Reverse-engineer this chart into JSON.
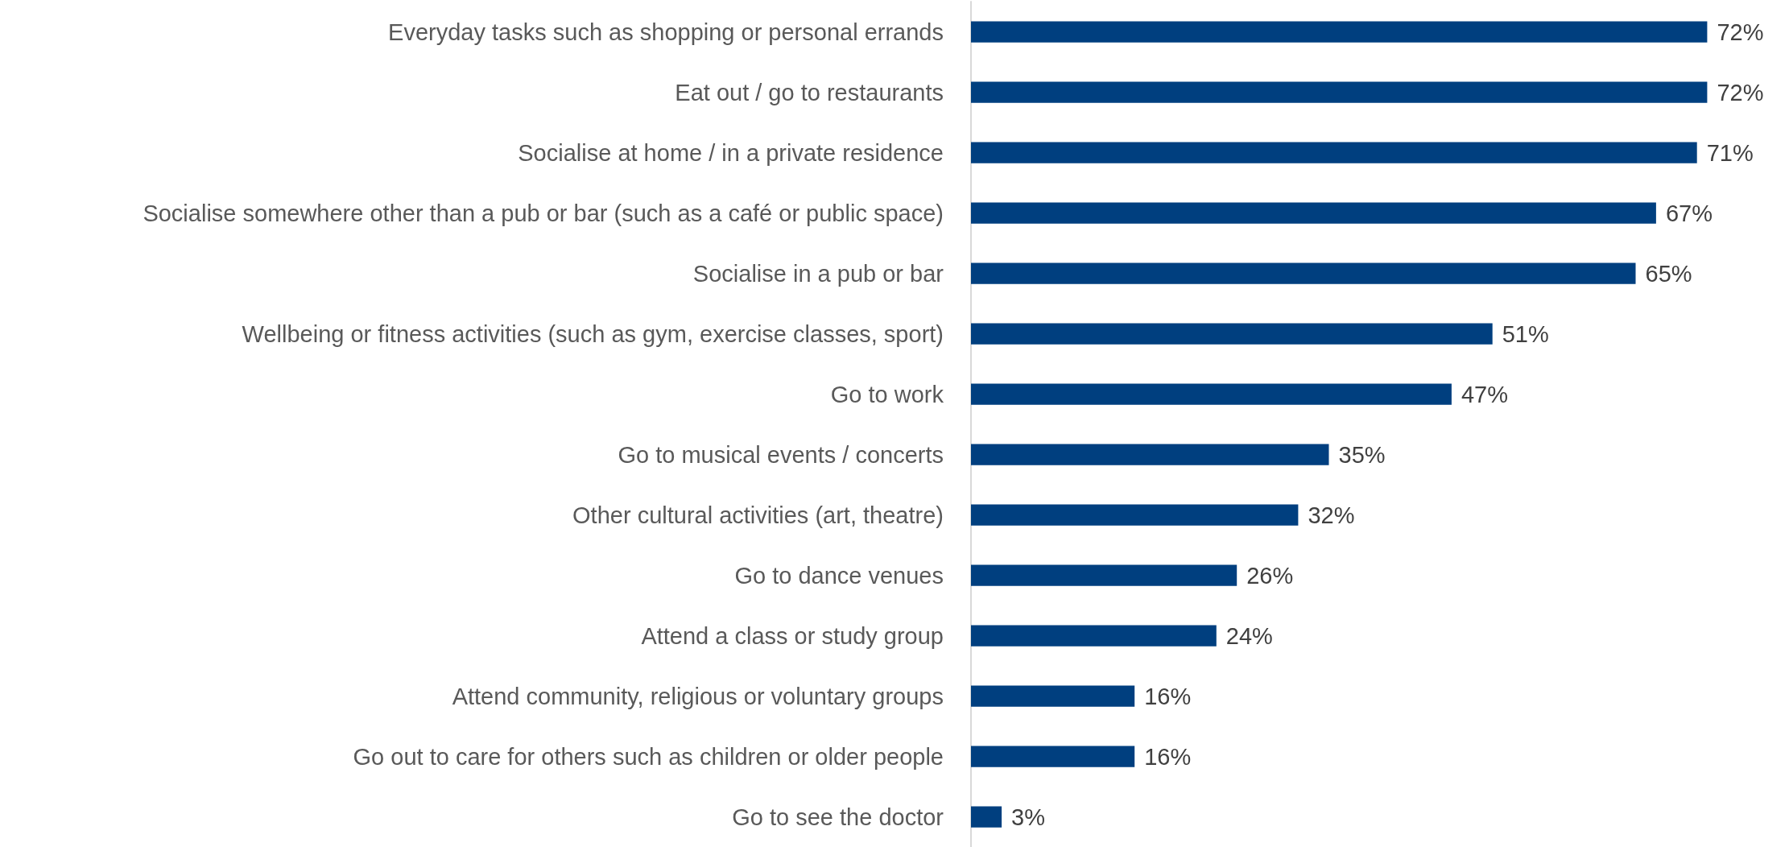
{
  "chart_data": {
    "type": "bar",
    "orientation": "horizontal",
    "categories": [
      "Everyday tasks such as shopping or personal errands",
      "Eat out / go to restaurants",
      "Socialise at home / in a private residence",
      "Socialise somewhere other than a pub or bar (such as a café or public space)",
      "Socialise in a pub or bar",
      "Wellbeing or fitness activities (such as gym, exercise classes, sport)",
      "Go to work",
      "Go to musical events / concerts",
      "Other cultural activities (art, theatre)",
      "Go to dance venues",
      "Attend a class or study group",
      "Attend community, religious or voluntary groups",
      "Go out to care for others such as children or older people",
      "Go to see the doctor"
    ],
    "values": [
      72,
      72,
      71,
      67,
      65,
      51,
      47,
      35,
      32,
      26,
      24,
      16,
      16,
      3
    ],
    "value_labels": [
      "72%",
      "72%",
      "71%",
      "67%",
      "65%",
      "51%",
      "47%",
      "35%",
      "32%",
      "26%",
      "24%",
      "16%",
      "16%",
      "3%"
    ],
    "color": "#003f7f",
    "grid": false
  }
}
